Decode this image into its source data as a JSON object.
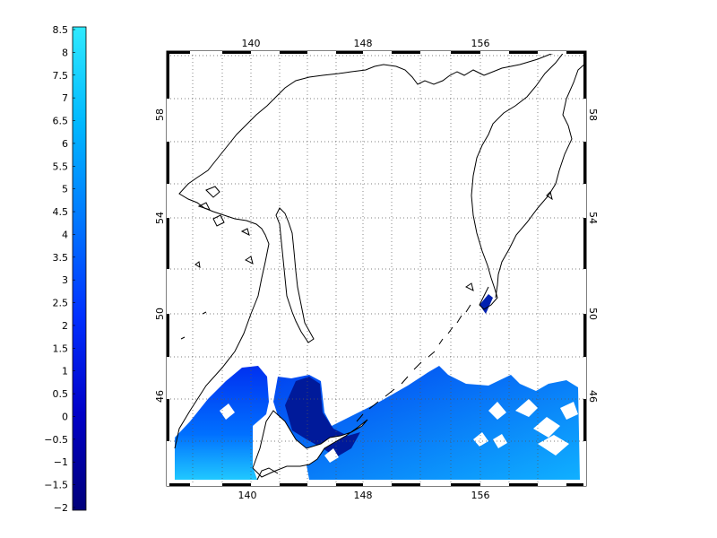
{
  "colorbar": {
    "labels": [
      "8.5",
      "8",
      "7.5",
      "7",
      "6.5",
      "6",
      "5.5",
      "5",
      "4.5",
      "4",
      "3.5",
      "3",
      "2.5",
      "2",
      "1.5",
      "1",
      "0.5",
      "0",
      "−0.5",
      "−1",
      "−1.5",
      "−2"
    ],
    "min": -2,
    "max": 8.5,
    "colors": [
      "#000080",
      "#0000c8",
      "#0030ff",
      "#0080ff",
      "#00c8ff",
      "#30f0ff"
    ]
  },
  "map": {
    "lon_labels": [
      "140",
      "148",
      "156"
    ],
    "lat_labels": [
      "58",
      "54",
      "50",
      "46"
    ],
    "lon_range": [
      135,
      163
    ],
    "lat_range": [
      41.5,
      61.5
    ],
    "grid": "dotted"
  }
}
